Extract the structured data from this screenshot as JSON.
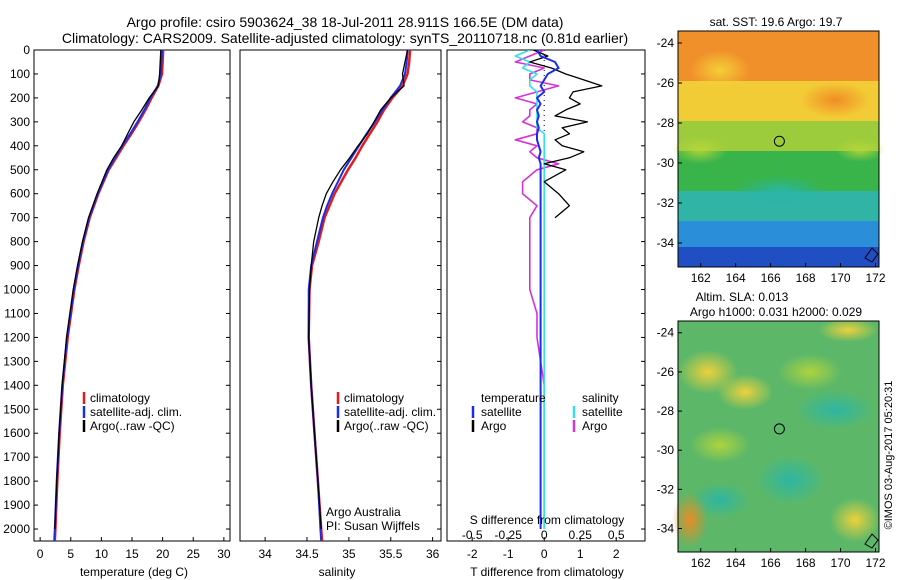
{
  "header": {
    "line1": "Argo profile: csiro 5903624_38 18-Jul-2011 28.911S 166.5E (DM data)",
    "line2": "Climatology: CARS2009. Satellite-adjusted climatology: synTS_20110718.nc (0.81d earlier)"
  },
  "colors": {
    "climatology": "#e41a1c",
    "satellite": "#1a2ee6",
    "argo": "#000000",
    "salinity_satellite": "#33e0e6",
    "salinity_argo": "#d633d6"
  },
  "chart_data": [
    {
      "type": "line",
      "name": "temperature-profile",
      "xlabel": "temperature (deg C)",
      "ylim": [
        2050,
        0
      ],
      "xlim": [
        -1,
        31
      ],
      "xticks": [
        0,
        5,
        10,
        15,
        20,
        25,
        30
      ],
      "yticks": [
        0,
        100,
        200,
        300,
        400,
        500,
        600,
        700,
        800,
        900,
        1000,
        1100,
        1200,
        1300,
        1400,
        1500,
        1600,
        1700,
        1800,
        1900,
        2000
      ],
      "grid": false,
      "legend": {
        "position": "lower-middle",
        "entries": [
          "climatology",
          "satellite-adj. clim.",
          "Argo(..raw -QC)"
        ]
      },
      "depth": [
        0,
        50,
        100,
        150,
        200,
        250,
        300,
        350,
        400,
        450,
        500,
        600,
        700,
        800,
        900,
        1000,
        1200,
        1400,
        1600,
        1800,
        2000,
        2050
      ],
      "series": [
        {
          "name": "climatology",
          "values": [
            20.1,
            20.0,
            19.9,
            19.3,
            18.2,
            17.2,
            16.1,
            14.9,
            13.6,
            12.4,
            11.2,
            9.5,
            8.1,
            7.1,
            6.3,
            5.6,
            4.5,
            3.7,
            3.2,
            2.8,
            2.5,
            2.4
          ]
        },
        {
          "name": "satellite-adj. clim.",
          "values": [
            19.9,
            19.8,
            19.7,
            19.2,
            18.0,
            17.0,
            15.9,
            14.7,
            13.4,
            12.2,
            11.1,
            9.4,
            8.0,
            7.0,
            6.2,
            5.5,
            4.4,
            3.6,
            3.1,
            2.7,
            2.4,
            2.3
          ]
        },
        {
          "name": "Argo(..raw -QC)",
          "values": [
            19.7,
            19.6,
            19.5,
            19.3,
            17.8,
            16.6,
            15.3,
            14.3,
            13.3,
            12.0,
            10.9,
            9.3,
            7.9,
            6.9,
            6.1,
            5.4,
            4.3,
            3.6,
            3.1,
            2.7,
            2.4,
            null
          ]
        }
      ]
    },
    {
      "type": "line",
      "name": "salinity-profile",
      "xlabel": "salinity",
      "ylim": [
        2050,
        0
      ],
      "xlim": [
        33.7,
        36.1
      ],
      "xticks": [
        34,
        34.5,
        35,
        35.5,
        36
      ],
      "grid": false,
      "legend": {
        "position": "lower-middle",
        "entries": [
          "climatology",
          "satellite-adj. clim.",
          "Argo(..raw -QC)"
        ]
      },
      "annotation": [
        "Argo Australia",
        "PI: Susan Wijffels"
      ],
      "depth": [
        0,
        50,
        100,
        150,
        200,
        250,
        300,
        350,
        400,
        450,
        500,
        550,
        600,
        650,
        700,
        800,
        900,
        1000,
        1200,
        1400,
        1600,
        1800,
        2000,
        2050
      ],
      "series": [
        {
          "name": "climatology",
          "values": [
            35.73,
            35.72,
            35.7,
            35.64,
            35.52,
            35.42,
            35.34,
            35.25,
            35.16,
            35.08,
            34.99,
            34.91,
            34.83,
            34.77,
            34.71,
            34.64,
            34.56,
            34.53,
            34.52,
            34.55,
            34.59,
            34.63,
            34.67,
            34.68
          ]
        },
        {
          "name": "satellite-adj. clim.",
          "values": [
            35.7,
            35.69,
            35.67,
            35.61,
            35.5,
            35.4,
            35.31,
            35.21,
            35.12,
            35.03,
            34.94,
            34.87,
            34.8,
            34.74,
            34.69,
            34.62,
            34.55,
            34.52,
            34.52,
            34.55,
            34.59,
            34.63,
            34.66,
            34.67
          ]
        },
        {
          "name": "Argo(..raw -QC)",
          "values": [
            35.7,
            35.67,
            35.64,
            35.66,
            35.5,
            35.38,
            35.3,
            35.22,
            35.11,
            35.01,
            34.9,
            34.81,
            34.73,
            34.68,
            34.64,
            34.58,
            34.55,
            34.53,
            34.52,
            34.55,
            34.59,
            34.63,
            34.67,
            null
          ]
        }
      ]
    },
    {
      "type": "line",
      "name": "difference-profile",
      "xlabel": "T difference from climatology",
      "xlabel_top": "S difference from climatology",
      "ylim": [
        2050,
        0
      ],
      "xlim": [
        -2.7,
        2.8
      ],
      "xticks": [
        -2,
        -1,
        0,
        1,
        2
      ],
      "xtick_labels": [
        "-2",
        "-1",
        "0",
        "1",
        "2"
      ],
      "s_ticks": [
        -0.5,
        -0.25,
        0,
        0.25,
        0.5
      ],
      "s_tick_labels": [
        "-0.5",
        "-0.25",
        "0",
        "0.25",
        "0.5"
      ],
      "grid": false,
      "legend": {
        "position": "lower-middle",
        "headers": [
          "temperature",
          "salinity"
        ],
        "entries": [
          "satellite",
          "Argo",
          "satellite",
          "Argo"
        ]
      },
      "depth": [
        0,
        25,
        50,
        75,
        100,
        125,
        150,
        175,
        200,
        225,
        250,
        275,
        300,
        325,
        350,
        375,
        400,
        425,
        450,
        475,
        500,
        550,
        600,
        650,
        700,
        750,
        800,
        900,
        1000,
        1100,
        1200,
        1400,
        1600,
        1800,
        2000
      ],
      "series": [
        {
          "name": "temperature satellite",
          "values": [
            -0.2,
            -0.1,
            0.3,
            0.4,
            0.1,
            0.0,
            -0.1,
            0.0,
            -0.2,
            -0.1,
            -0.2,
            -0.15,
            -0.2,
            -0.15,
            -0.2,
            -0.2,
            -0.15,
            -0.1,
            -0.15,
            -0.1,
            -0.1,
            -0.1,
            -0.1,
            -0.1,
            -0.1,
            -0.1,
            -0.1,
            -0.1,
            -0.1,
            -0.1,
            -0.1,
            -0.1,
            -0.1,
            -0.1,
            -0.1
          ]
        },
        {
          "name": "temperature Argo",
          "values": [
            -0.3,
            0.1,
            -0.4,
            0.2,
            0.6,
            1.1,
            1.6,
            0.8,
            0.7,
            1.0,
            0.6,
            0.3,
            1.2,
            0.5,
            0.7,
            0.3,
            0.5,
            1.1,
            0.7,
            0.0,
            0.6,
            0.0,
            0.4,
            0.7,
            0.3,
            null,
            null,
            null,
            null,
            null,
            null,
            null,
            null,
            null,
            null
          ]
        },
        {
          "name": "salinity satellite",
          "values": [
            -0.1,
            -0.2,
            -0.1,
            -0.15,
            -0.05,
            -0.1,
            -0.1,
            -0.05,
            -0.05,
            -0.05,
            -0.05,
            -0.05,
            -0.05,
            -0.05,
            0.0,
            0.0,
            0.0,
            0.0,
            0.0,
            0.0,
            0.0,
            0.0,
            0.0,
            0.0,
            0.0,
            0.0,
            0.0,
            0.0,
            0.0,
            0.0,
            0.0,
            0.0,
            0.0,
            0.0,
            0.0
          ]
        },
        {
          "name": "salinity Argo",
          "values": [
            0.0,
            -0.1,
            -0.2,
            0.0,
            -0.1,
            -0.1,
            0.1,
            -0.05,
            -0.2,
            -0.05,
            -0.1,
            -0.1,
            -0.15,
            -0.05,
            -0.05,
            -0.2,
            -0.05,
            -0.1,
            -0.05,
            0.1,
            -0.05,
            -0.15,
            -0.15,
            -0.05,
            -0.1,
            -0.1,
            -0.1,
            -0.1,
            -0.1,
            -0.05,
            -0.05,
            0.0,
            0.0,
            0.0,
            0.0
          ]
        }
      ]
    },
    {
      "type": "heatmap",
      "name": "sst-map",
      "title": "sat. SST: 19.6 Argo: 19.7",
      "xlim": [
        160.7,
        172.2
      ],
      "ylim": [
        -35.2,
        -23.4
      ],
      "xticks": [
        162,
        164,
        166,
        168,
        170,
        172
      ],
      "yticks": [
        -24,
        -26,
        -28,
        -30,
        -32,
        -34
      ],
      "marker": {
        "lon": 166.5,
        "lat": -28.911
      }
    },
    {
      "type": "heatmap",
      "name": "sla-map",
      "title": "Altim. SLA: 0.013",
      "subtitle": "Argo h1000: 0.031 h2000: 0.029",
      "xlim": [
        160.7,
        172.2
      ],
      "ylim": [
        -35.2,
        -23.4
      ],
      "xticks": [
        162,
        164,
        166,
        168,
        170,
        172
      ],
      "yticks": [
        -24,
        -26,
        -28,
        -30,
        -32,
        -34
      ],
      "marker": {
        "lon": 166.5,
        "lat": -28.911
      }
    }
  ],
  "footer": {
    "credit": "©IMOS 03-Aug-2017 05:20:31"
  }
}
